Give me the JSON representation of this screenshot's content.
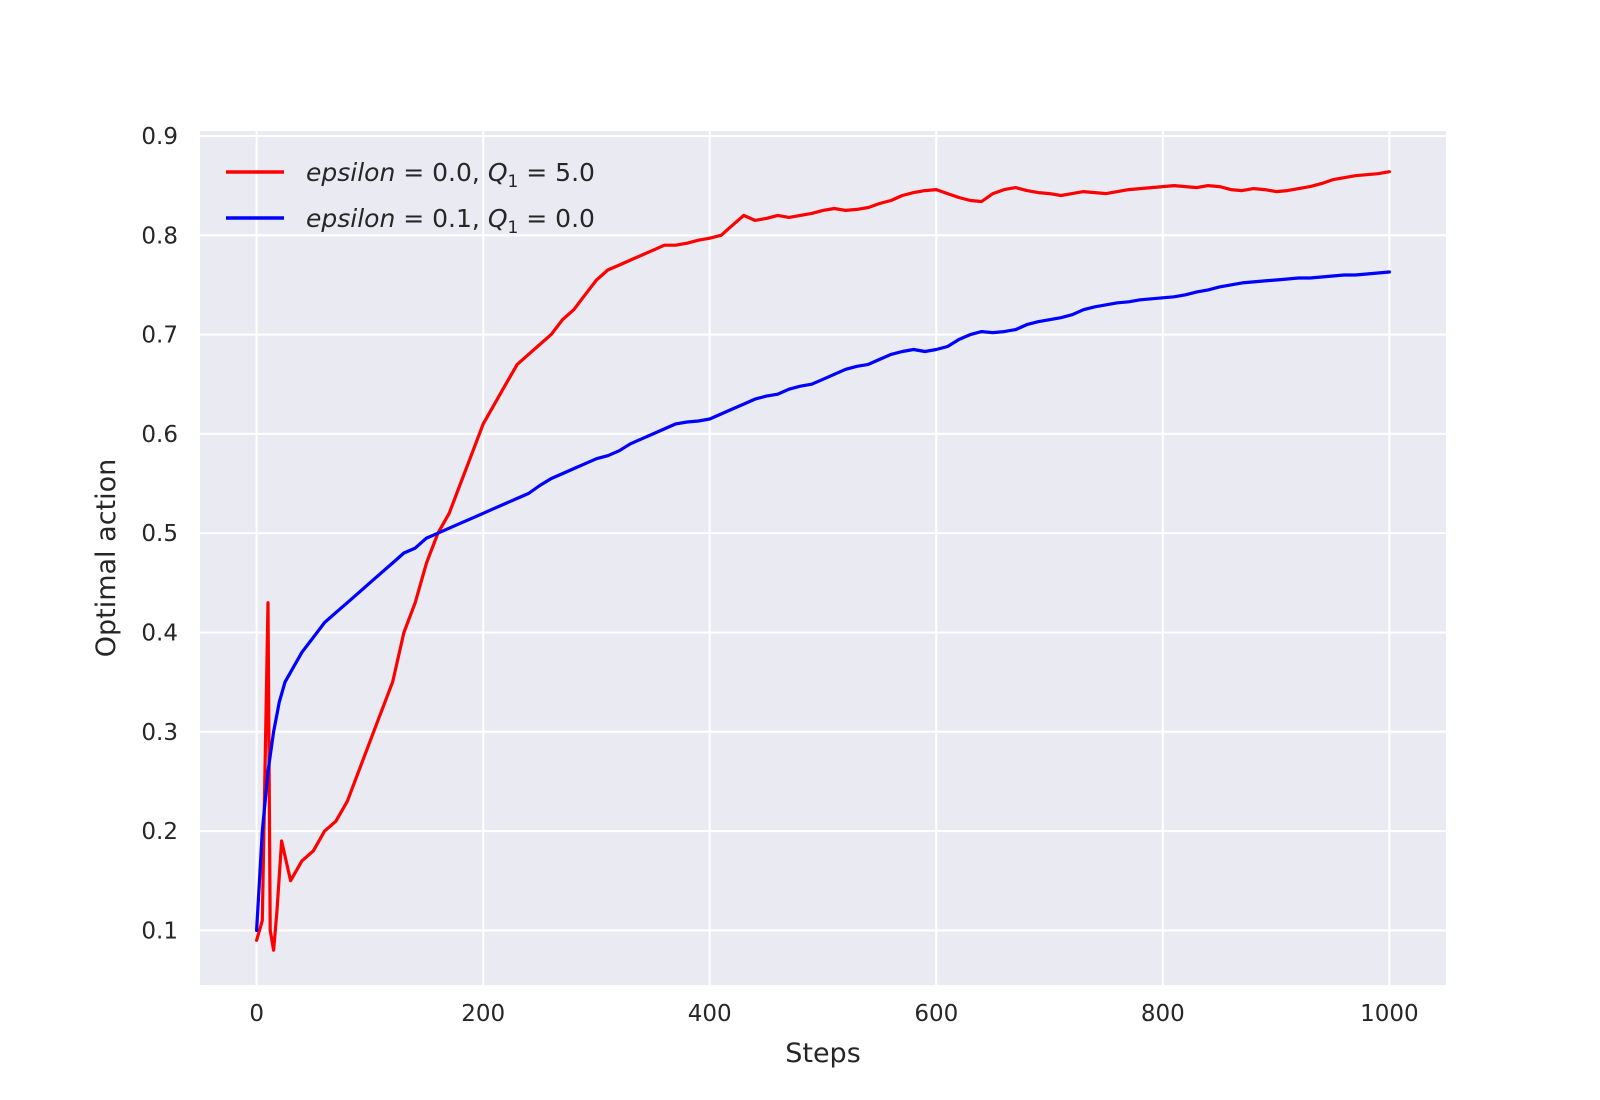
{
  "chart_data": {
    "type": "line",
    "title": "",
    "xlabel": "Steps",
    "ylabel": "Optimal action",
    "xlim": [
      -50,
      1050
    ],
    "ylim": [
      0.045,
      0.905
    ],
    "xticks": [
      0,
      200,
      400,
      600,
      800,
      1000
    ],
    "xtick_labels": [
      "0",
      "200",
      "400",
      "600",
      "800",
      "1000"
    ],
    "yticks": [
      0.1,
      0.2,
      0.3,
      0.4,
      0.5,
      0.6,
      0.7,
      0.8,
      0.9
    ],
    "ytick_labels": [
      "0.1",
      "0.2",
      "0.3",
      "0.4",
      "0.5",
      "0.6",
      "0.7",
      "0.8",
      "0.9"
    ],
    "grid": true,
    "legend_position": "top-left",
    "background_color": "#eaeaf2",
    "grid_color": "#ffffff",
    "series": [
      {
        "legend_parts": {
          "var": "epsilon",
          "eq1": " = 0.0, ",
          "q": "Q",
          "sub": "1",
          "eq2": " = 5.0"
        },
        "color": "#ff0000",
        "x": [
          0,
          5,
          10,
          12,
          15,
          18,
          22,
          30,
          40,
          50,
          60,
          70,
          80,
          90,
          100,
          110,
          120,
          130,
          140,
          150,
          160,
          170,
          180,
          190,
          200,
          210,
          220,
          230,
          240,
          250,
          260,
          270,
          280,
          290,
          300,
          310,
          320,
          330,
          340,
          350,
          360,
          370,
          380,
          390,
          400,
          410,
          420,
          430,
          440,
          450,
          460,
          470,
          480,
          490,
          500,
          510,
          520,
          530,
          540,
          550,
          560,
          570,
          580,
          590,
          600,
          610,
          620,
          630,
          640,
          650,
          660,
          670,
          680,
          690,
          700,
          710,
          720,
          730,
          740,
          750,
          760,
          770,
          780,
          790,
          800,
          810,
          820,
          830,
          840,
          850,
          860,
          870,
          880,
          890,
          900,
          910,
          920,
          930,
          940,
          950,
          960,
          970,
          980,
          990,
          1000
        ],
        "y": [
          0.09,
          0.11,
          0.43,
          0.1,
          0.08,
          0.12,
          0.19,
          0.15,
          0.17,
          0.18,
          0.2,
          0.21,
          0.23,
          0.26,
          0.29,
          0.32,
          0.35,
          0.4,
          0.43,
          0.47,
          0.5,
          0.52,
          0.55,
          0.58,
          0.61,
          0.63,
          0.65,
          0.67,
          0.68,
          0.69,
          0.7,
          0.715,
          0.725,
          0.74,
          0.755,
          0.765,
          0.77,
          0.775,
          0.78,
          0.785,
          0.79,
          0.79,
          0.792,
          0.795,
          0.797,
          0.8,
          0.81,
          0.82,
          0.815,
          0.817,
          0.82,
          0.818,
          0.82,
          0.822,
          0.825,
          0.827,
          0.825,
          0.826,
          0.828,
          0.832,
          0.835,
          0.84,
          0.843,
          0.845,
          0.846,
          0.842,
          0.838,
          0.835,
          0.834,
          0.842,
          0.846,
          0.848,
          0.845,
          0.843,
          0.842,
          0.84,
          0.842,
          0.844,
          0.843,
          0.842,
          0.844,
          0.846,
          0.847,
          0.848,
          0.849,
          0.85,
          0.849,
          0.848,
          0.85,
          0.849,
          0.846,
          0.845,
          0.847,
          0.846,
          0.844,
          0.845,
          0.847,
          0.849,
          0.852,
          0.856,
          0.858,
          0.86,
          0.861,
          0.862,
          0.864
        ]
      },
      {
        "legend_parts": {
          "var": "epsilon",
          "eq1": " = 0.1, ",
          "q": "Q",
          "sub": "1",
          "eq2": " = 0.0"
        },
        "color": "#0000ff",
        "x": [
          0,
          5,
          10,
          15,
          20,
          25,
          30,
          40,
          50,
          60,
          70,
          80,
          90,
          100,
          110,
          120,
          130,
          140,
          150,
          160,
          170,
          180,
          190,
          200,
          210,
          220,
          230,
          240,
          250,
          260,
          270,
          280,
          290,
          300,
          310,
          320,
          330,
          340,
          350,
          360,
          370,
          380,
          390,
          400,
          410,
          420,
          430,
          440,
          450,
          460,
          470,
          480,
          490,
          500,
          510,
          520,
          530,
          540,
          550,
          560,
          570,
          580,
          590,
          600,
          610,
          620,
          630,
          640,
          650,
          660,
          670,
          680,
          690,
          700,
          710,
          720,
          730,
          740,
          750,
          760,
          770,
          780,
          790,
          800,
          810,
          820,
          830,
          840,
          850,
          860,
          870,
          880,
          890,
          900,
          910,
          920,
          930,
          940,
          950,
          960,
          970,
          980,
          990,
          1000
        ],
        "y": [
          0.1,
          0.2,
          0.26,
          0.3,
          0.33,
          0.35,
          0.36,
          0.38,
          0.395,
          0.41,
          0.42,
          0.43,
          0.44,
          0.45,
          0.46,
          0.47,
          0.48,
          0.485,
          0.495,
          0.5,
          0.505,
          0.51,
          0.515,
          0.52,
          0.525,
          0.53,
          0.535,
          0.54,
          0.548,
          0.555,
          0.56,
          0.565,
          0.57,
          0.575,
          0.578,
          0.583,
          0.59,
          0.595,
          0.6,
          0.605,
          0.61,
          0.612,
          0.613,
          0.615,
          0.62,
          0.625,
          0.63,
          0.635,
          0.638,
          0.64,
          0.645,
          0.648,
          0.65,
          0.655,
          0.66,
          0.665,
          0.668,
          0.67,
          0.675,
          0.68,
          0.683,
          0.685,
          0.683,
          0.685,
          0.688,
          0.695,
          0.7,
          0.703,
          0.702,
          0.703,
          0.705,
          0.71,
          0.713,
          0.715,
          0.717,
          0.72,
          0.725,
          0.728,
          0.73,
          0.732,
          0.733,
          0.735,
          0.736,
          0.737,
          0.738,
          0.74,
          0.743,
          0.745,
          0.748,
          0.75,
          0.752,
          0.753,
          0.754,
          0.755,
          0.756,
          0.757,
          0.757,
          0.758,
          0.759,
          0.76,
          0.76,
          0.761,
          0.762,
          0.763
        ]
      }
    ]
  }
}
